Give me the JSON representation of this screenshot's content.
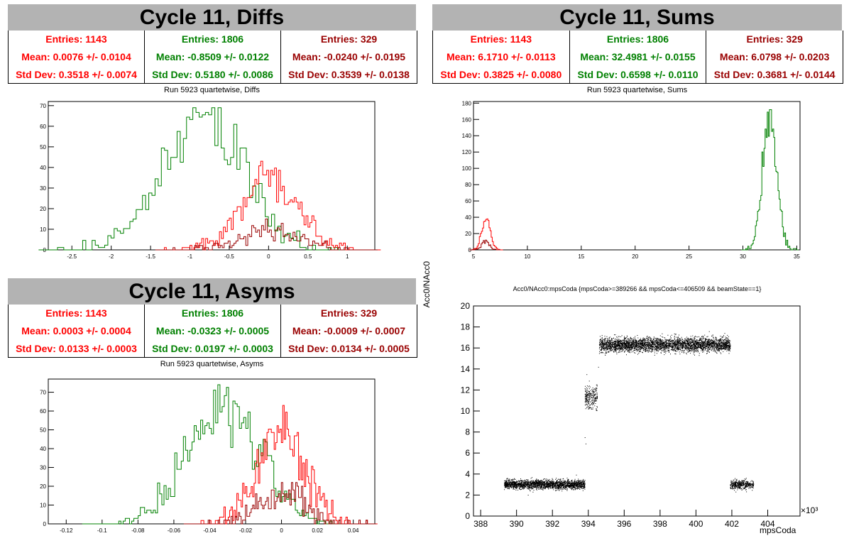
{
  "colors": {
    "red": "#ff0000",
    "green": "#008000",
    "darkred": "#990000",
    "black": "#000000"
  },
  "panels": {
    "diffs": {
      "title": "Cycle 11, Diffs",
      "subtitle": "Run 5923 quartetwise, Diffs",
      "stats": [
        {
          "entries": "Entries: 1143",
          "mean": "Mean: 0.0076 +/- 0.0104",
          "std": "Std Dev: 0.3518 +/- 0.0074"
        },
        {
          "entries": "Entries: 1806",
          "mean": "Mean: -0.8509 +/- 0.0122",
          "std": "Std Dev: 0.5180 +/- 0.0086"
        },
        {
          "entries": "Entries: 329",
          "mean": "Mean: -0.0240 +/- 0.0195",
          "std": "Std Dev: 0.3539 +/- 0.0138"
        }
      ]
    },
    "sums": {
      "title": "Cycle 11, Sums",
      "subtitle": "Run 5923 quartetwise, Sums",
      "stats": [
        {
          "entries": "Entries: 1143",
          "mean": "Mean: 6.1710 +/- 0.0113",
          "std": "Std Dev: 0.3825 +/- 0.0080"
        },
        {
          "entries": "Entries: 1806",
          "mean": "Mean: 32.4981 +/- 0.0155",
          "std": "Std Dev: 0.6598 +/- 0.0110"
        },
        {
          "entries": "Entries: 329",
          "mean": "Mean: 6.0798 +/- 0.0203",
          "std": "Std Dev: 0.3681 +/- 0.0144"
        }
      ]
    },
    "asyms": {
      "title": "Cycle 11, Asyms",
      "subtitle": "Run 5923 quartetwise, Asyms",
      "stats": [
        {
          "entries": "Entries: 1143",
          "mean": "Mean: 0.0003 +/- 0.0004",
          "std": "Std Dev: 0.0133 +/- 0.0003"
        },
        {
          "entries": "Entries: 1806",
          "mean": "Mean: -0.0323 +/- 0.0005",
          "std": "Std Dev: 0.0197 +/- 0.0003"
        },
        {
          "entries": "Entries: 329",
          "mean": "Mean: -0.0009 +/- 0.0007",
          "std": "Std Dev: 0.0134 +/- 0.0005"
        }
      ]
    },
    "scatter": {
      "title": "Acc0/NAcc0:mpsCoda {mpsCoda>=389266 && mpsCoda<=406509 && beamState==1}",
      "xlabel": "mpsCoda",
      "ylabel": "Acc0/NAcc0",
      "exponent": "×10³"
    }
  },
  "chart_data": [
    {
      "type": "histogram",
      "name": "diffs",
      "xlim": [
        -2.8,
        1.35
      ],
      "ylim": [
        0,
        72
      ],
      "xticks": [
        -2.5,
        -2,
        -1.5,
        -1,
        -0.5,
        0,
        0.5,
        1
      ],
      "xtick_labels": [
        "-2.5",
        "-2",
        "-1.5",
        "-1",
        "-0.5",
        "0",
        "0.5",
        "1"
      ],
      "yticks": [
        0,
        10,
        20,
        30,
        40,
        50,
        60,
        70
      ],
      "series": [
        {
          "color": "green",
          "entries": 1806,
          "mean": -0.8509,
          "std": 0.518,
          "bin": 0.04,
          "peak": 69
        },
        {
          "color": "red",
          "entries": 1143,
          "mean": 0.0076,
          "std": 0.3518,
          "bin": 0.025,
          "peak": 43
        },
        {
          "color": "darkred",
          "entries": 329,
          "mean": -0.024,
          "std": 0.3539,
          "bin": 0.025,
          "peak": 15
        }
      ]
    },
    {
      "type": "histogram",
      "name": "sums",
      "xlim": [
        5,
        35.3
      ],
      "ylim": [
        0,
        182
      ],
      "xticks": [
        5,
        10,
        15,
        20,
        25,
        30,
        35
      ],
      "xtick_labels": [
        "5",
        "10",
        "15",
        "20",
        "25",
        "30",
        "35"
      ],
      "yticks": [
        0,
        20,
        40,
        60,
        80,
        100,
        120,
        140,
        160,
        180
      ],
      "series": [
        {
          "color": "green",
          "entries": 1806,
          "mean": 32.4981,
          "std": 0.6598,
          "bin": 0.1,
          "peak": 172
        },
        {
          "color": "red",
          "entries": 1143,
          "mean": 6.171,
          "std": 0.3825,
          "bin": 0.1,
          "peak": 38
        },
        {
          "color": "darkred",
          "entries": 329,
          "mean": 6.0798,
          "std": 0.3681,
          "bin": 0.1,
          "peak": 12
        }
      ]
    },
    {
      "type": "histogram",
      "name": "asyms",
      "xlim": [
        -0.13,
        0.052
      ],
      "ylim": [
        0,
        77
      ],
      "xticks": [
        -0.12,
        -0.1,
        -0.08,
        -0.06,
        -0.04,
        -0.02,
        0,
        0.02,
        0.04
      ],
      "xtick_labels": [
        "-0.12",
        "-0.1",
        "-0.08",
        "-0.06",
        "-0.04",
        "-0.02",
        "0",
        "0.02",
        "0.04"
      ],
      "yticks": [
        0,
        10,
        20,
        30,
        40,
        50,
        60,
        70
      ],
      "series": [
        {
          "color": "green",
          "entries": 1806,
          "mean": -0.0323,
          "std": 0.0197,
          "bin": 0.0012,
          "peak": 74
        },
        {
          "color": "red",
          "entries": 1143,
          "mean": 0.0003,
          "std": 0.0133,
          "bin": 0.0008,
          "peak": 63
        },
        {
          "color": "darkred",
          "entries": 329,
          "mean": -0.0009,
          "std": 0.0134,
          "bin": 0.0008,
          "peak": 22
        }
      ]
    },
    {
      "type": "scatter",
      "name": "acc0-vs-mpscoda",
      "xlim": [
        387.6,
        405.8
      ],
      "ylim": [
        0,
        20
      ],
      "xticks": [
        388,
        390,
        392,
        394,
        396,
        398,
        400,
        402,
        404
      ],
      "yticks": [
        0,
        2,
        4,
        6,
        8,
        10,
        12,
        14,
        16,
        18,
        20
      ],
      "clusters": [
        {
          "x": [
            389.3,
            393.8
          ],
          "y": 3.0,
          "spread": 0.35,
          "n": 2200
        },
        {
          "x": [
            393.8,
            394.5
          ],
          "y": 11.3,
          "spread": 0.9,
          "n": 260
        },
        {
          "x": [
            394.6,
            401.9
          ],
          "y": 16.3,
          "spread": 0.55,
          "n": 3600
        },
        {
          "x": [
            401.9,
            403.2
          ],
          "y": 3.0,
          "spread": 0.35,
          "n": 450
        }
      ]
    }
  ]
}
